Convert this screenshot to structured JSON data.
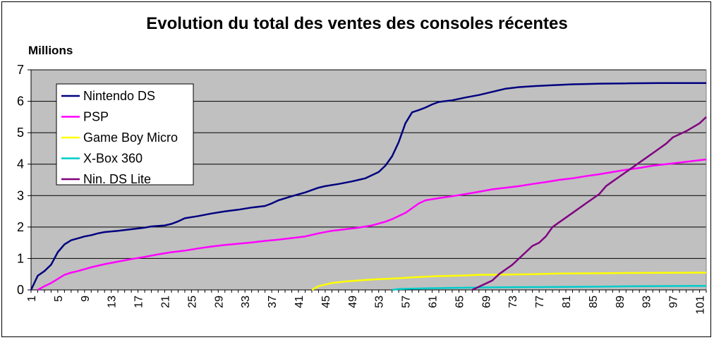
{
  "chart_data": {
    "type": "line",
    "title": "Evolution du total des ventes des consoles récentes",
    "ylabel": "Millions",
    "xlabel": "",
    "ylim": [
      0,
      7
    ],
    "xlim": [
      1,
      102
    ],
    "y_ticks": [
      "0",
      "1",
      "2",
      "3",
      "4",
      "5",
      "6",
      "7"
    ],
    "x_ticks": [
      "1",
      "5",
      "9",
      "13",
      "17",
      "21",
      "25",
      "29",
      "33",
      "37",
      "41",
      "45",
      "49",
      "53",
      "57",
      "61",
      "65",
      "69",
      "73",
      "77",
      "81",
      "85",
      "89",
      "93",
      "97",
      "101"
    ],
    "grid": "horizontal",
    "legend_position": "top-left",
    "colors": {
      "plot_background": "#c0c0c0"
    },
    "series": [
      {
        "name": "Nintendo DS",
        "color": "#000080",
        "points": [
          [
            1,
            0
          ],
          [
            2,
            0.45
          ],
          [
            3,
            0.6
          ],
          [
            4,
            0.8
          ],
          [
            5,
            1.2
          ],
          [
            6,
            1.45
          ],
          [
            7,
            1.58
          ],
          [
            8,
            1.64
          ],
          [
            9,
            1.7
          ],
          [
            10,
            1.74
          ],
          [
            11,
            1.8
          ],
          [
            12,
            1.84
          ],
          [
            14,
            1.88
          ],
          [
            16,
            1.93
          ],
          [
            18,
            1.98
          ],
          [
            19,
            2.02
          ],
          [
            21,
            2.05
          ],
          [
            22,
            2.1
          ],
          [
            23,
            2.18
          ],
          [
            24,
            2.28
          ],
          [
            26,
            2.35
          ],
          [
            28,
            2.43
          ],
          [
            30,
            2.5
          ],
          [
            32,
            2.55
          ],
          [
            34,
            2.62
          ],
          [
            36,
            2.67
          ],
          [
            37,
            2.75
          ],
          [
            38,
            2.85
          ],
          [
            40,
            2.98
          ],
          [
            42,
            3.1
          ],
          [
            44,
            3.25
          ],
          [
            45,
            3.3
          ],
          [
            47,
            3.37
          ],
          [
            49,
            3.45
          ],
          [
            51,
            3.55
          ],
          [
            53,
            3.75
          ],
          [
            54,
            3.95
          ],
          [
            55,
            4.25
          ],
          [
            56,
            4.7
          ],
          [
            57,
            5.3
          ],
          [
            58,
            5.65
          ],
          [
            59,
            5.72
          ],
          [
            60,
            5.8
          ],
          [
            61,
            5.9
          ],
          [
            62,
            5.98
          ],
          [
            64,
            6.03
          ],
          [
            66,
            6.12
          ],
          [
            68,
            6.2
          ],
          [
            70,
            6.3
          ],
          [
            72,
            6.4
          ],
          [
            74,
            6.45
          ],
          [
            76,
            6.48
          ],
          [
            78,
            6.5
          ],
          [
            80,
            6.52
          ],
          [
            82,
            6.54
          ],
          [
            84,
            6.55
          ],
          [
            86,
            6.56
          ],
          [
            90,
            6.57
          ],
          [
            95,
            6.58
          ],
          [
            102,
            6.58
          ]
        ]
      },
      {
        "name": "PSP",
        "color": "#ff00ff",
        "points": [
          [
            2,
            0
          ],
          [
            3,
            0.12
          ],
          [
            4,
            0.22
          ],
          [
            5,
            0.35
          ],
          [
            6,
            0.48
          ],
          [
            7,
            0.55
          ],
          [
            8,
            0.6
          ],
          [
            10,
            0.72
          ],
          [
            12,
            0.82
          ],
          [
            14,
            0.9
          ],
          [
            16,
            0.98
          ],
          [
            18,
            1.05
          ],
          [
            20,
            1.13
          ],
          [
            22,
            1.2
          ],
          [
            24,
            1.25
          ],
          [
            26,
            1.32
          ],
          [
            28,
            1.38
          ],
          [
            30,
            1.43
          ],
          [
            32,
            1.47
          ],
          [
            34,
            1.51
          ],
          [
            36,
            1.56
          ],
          [
            38,
            1.6
          ],
          [
            40,
            1.65
          ],
          [
            42,
            1.7
          ],
          [
            44,
            1.8
          ],
          [
            46,
            1.88
          ],
          [
            48,
            1.93
          ],
          [
            50,
            1.98
          ],
          [
            52,
            2.05
          ],
          [
            54,
            2.17
          ],
          [
            55,
            2.25
          ],
          [
            56,
            2.35
          ],
          [
            57,
            2.45
          ],
          [
            58,
            2.6
          ],
          [
            59,
            2.75
          ],
          [
            60,
            2.85
          ],
          [
            62,
            2.92
          ],
          [
            64,
            2.98
          ],
          [
            66,
            3.05
          ],
          [
            68,
            3.12
          ],
          [
            70,
            3.2
          ],
          [
            72,
            3.25
          ],
          [
            74,
            3.3
          ],
          [
            76,
            3.37
          ],
          [
            78,
            3.43
          ],
          [
            80,
            3.5
          ],
          [
            82,
            3.55
          ],
          [
            84,
            3.62
          ],
          [
            86,
            3.68
          ],
          [
            88,
            3.75
          ],
          [
            90,
            3.82
          ],
          [
            92,
            3.88
          ],
          [
            94,
            3.95
          ],
          [
            96,
            4.0
          ],
          [
            98,
            4.05
          ],
          [
            100,
            4.1
          ],
          [
            102,
            4.15
          ]
        ]
      },
      {
        "name": "Game Boy Micro",
        "color": "#ffff00",
        "points": [
          [
            43,
            0
          ],
          [
            44,
            0.12
          ],
          [
            46,
            0.22
          ],
          [
            48,
            0.27
          ],
          [
            50,
            0.3
          ],
          [
            52,
            0.33
          ],
          [
            54,
            0.35
          ],
          [
            56,
            0.37
          ],
          [
            58,
            0.4
          ],
          [
            60,
            0.42
          ],
          [
            62,
            0.44
          ],
          [
            66,
            0.46
          ],
          [
            68,
            0.48
          ],
          [
            72,
            0.49
          ],
          [
            76,
            0.5
          ],
          [
            80,
            0.52
          ],
          [
            86,
            0.53
          ],
          [
            92,
            0.54
          ],
          [
            102,
            0.55
          ]
        ]
      },
      {
        "name": "X-Box 360",
        "color": "#00cccc",
        "points": [
          [
            55,
            0
          ],
          [
            56,
            0.03
          ],
          [
            60,
            0.05
          ],
          [
            66,
            0.07
          ],
          [
            70,
            0.08
          ],
          [
            76,
            0.09
          ],
          [
            84,
            0.1
          ],
          [
            92,
            0.12
          ],
          [
            102,
            0.13
          ]
        ]
      },
      {
        "name": "Nin. DS Lite",
        "color": "#800080",
        "points": [
          [
            67,
            0
          ],
          [
            68,
            0.1
          ],
          [
            70,
            0.3
          ],
          [
            71,
            0.5
          ],
          [
            72,
            0.65
          ],
          [
            73,
            0.8
          ],
          [
            74,
            1.0
          ],
          [
            75,
            1.2
          ],
          [
            76,
            1.4
          ],
          [
            77,
            1.5
          ],
          [
            78,
            1.7
          ],
          [
            79,
            2.0
          ],
          [
            80,
            2.15
          ],
          [
            82,
            2.45
          ],
          [
            84,
            2.75
          ],
          [
            86,
            3.05
          ],
          [
            87,
            3.3
          ],
          [
            88,
            3.45
          ],
          [
            89,
            3.6
          ],
          [
            90,
            3.75
          ],
          [
            91,
            3.9
          ],
          [
            92,
            4.05
          ],
          [
            93,
            4.2
          ],
          [
            94,
            4.35
          ],
          [
            95,
            4.5
          ],
          [
            96,
            4.65
          ],
          [
            97,
            4.85
          ],
          [
            99,
            5.05
          ],
          [
            101,
            5.3
          ],
          [
            102,
            5.5
          ]
        ]
      }
    ]
  }
}
